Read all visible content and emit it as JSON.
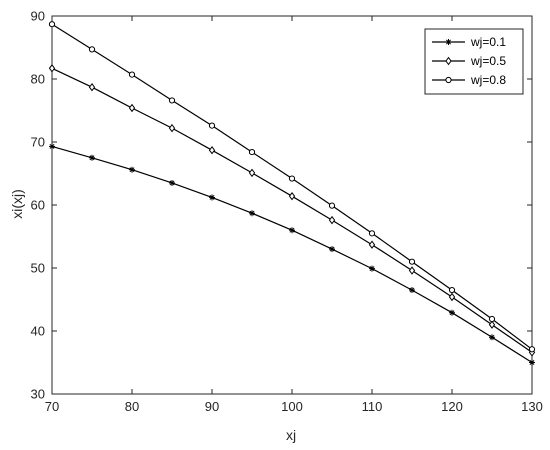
{
  "chart_data": {
    "type": "line",
    "title": "",
    "xlabel": "xj",
    "ylabel": "xi(xj)",
    "xlim": [
      70,
      130
    ],
    "ylim": [
      30,
      90
    ],
    "xticks": [
      70,
      80,
      90,
      100,
      110,
      120,
      130
    ],
    "yticks": [
      30,
      40,
      50,
      60,
      70,
      80,
      90
    ],
    "grid": false,
    "legend_position": "top-right",
    "x": [
      70,
      75,
      80,
      85,
      90,
      95,
      100,
      105,
      110,
      115,
      120,
      125,
      130
    ],
    "series": [
      {
        "name": "wj=0.1",
        "marker": "asterisk",
        "color": "#000000",
        "values": [
          69.3,
          67.5,
          65.6,
          63.5,
          61.2,
          58.7,
          56.0,
          53.0,
          49.9,
          46.5,
          42.9,
          39.0,
          35.0
        ]
      },
      {
        "name": "wj=0.5",
        "marker": "diamond",
        "color": "#000000",
        "values": [
          81.7,
          78.7,
          75.4,
          72.2,
          68.7,
          65.1,
          61.4,
          57.6,
          53.7,
          49.6,
          45.4,
          41.0,
          36.6
        ]
      },
      {
        "name": "wj=0.8",
        "marker": "circle",
        "color": "#000000",
        "values": [
          88.7,
          84.7,
          80.7,
          76.6,
          72.6,
          68.4,
          64.2,
          59.9,
          55.5,
          51.0,
          46.5,
          41.9,
          37.1
        ]
      }
    ]
  }
}
